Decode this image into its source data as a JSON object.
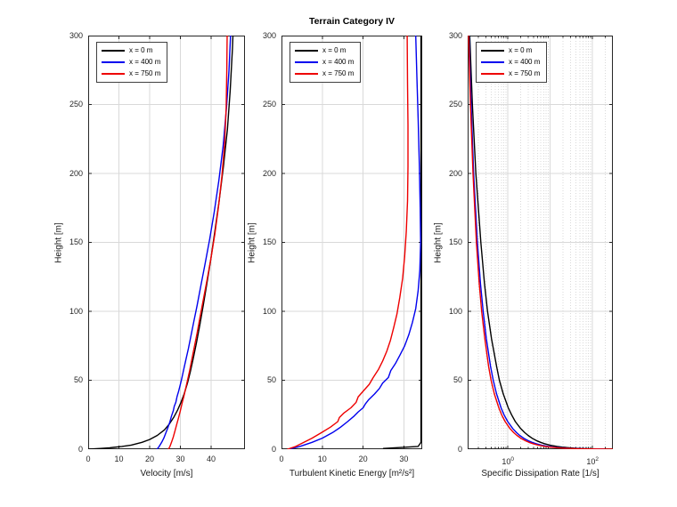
{
  "figure_title": "Terrain Category IV",
  "legend": {
    "entries": [
      {
        "label": "x = 0 m",
        "color": "#000000"
      },
      {
        "label": "x = 400 m",
        "color": "#0000ee"
      },
      {
        "label": "x = 750 m",
        "color": "#ee0000"
      }
    ]
  },
  "chart_data": [
    {
      "type": "line",
      "title": "",
      "xlabel": "Velocity [m/s]",
      "ylabel": "Height [m]",
      "xscale": "linear",
      "xlim": [
        0,
        51
      ],
      "ylim": [
        0,
        300
      ],
      "xticks": [
        0,
        10,
        20,
        30,
        40
      ],
      "xtick_labels": [
        "0",
        "10",
        "20",
        "30",
        "40"
      ],
      "yticks": [
        0,
        50,
        100,
        150,
        200,
        250,
        300
      ],
      "grid": true,
      "legend_position": "top-left",
      "series": [
        {
          "name": "x = 0 m",
          "color": "#000000",
          "x": [
            0,
            4,
            7,
            11,
            14,
            17.5,
            20,
            22.5,
            24.8,
            26.3,
            27.8,
            29,
            30.2,
            31.2,
            32.3,
            33.2,
            34.2,
            35.2,
            36.3,
            37.4,
            38.6,
            39.9,
            41.2,
            42.6,
            44,
            45.3,
            46.2,
            46.9,
            47.1
          ],
          "y": [
            0,
            0.5,
            1,
            2,
            3,
            5,
            7,
            10,
            14,
            18,
            23,
            28,
            34,
            40,
            48,
            56,
            66,
            77,
            90,
            104,
            120,
            138,
            158,
            180,
            205,
            232,
            260,
            290,
            300
          ]
        },
        {
          "name": "x = 400 m",
          "color": "#0000ee",
          "x": [
            22.4,
            23.1,
            23.9,
            24.6,
            25.3,
            26.0,
            26.6,
            27.1,
            27.7,
            28.0,
            28.5,
            28.9,
            29.4,
            30.0,
            30.5,
            31.1,
            31.8,
            32.6,
            33.4,
            34.3,
            35.4,
            36.6,
            38.0,
            39.5,
            41.0,
            42.5,
            43.9,
            45.0,
            45.8,
            46.3
          ],
          "y": [
            0,
            2,
            5,
            8,
            12,
            16,
            20,
            24,
            28,
            31,
            34,
            38,
            42,
            47,
            52,
            58,
            65,
            73,
            82,
            92,
            104,
            118,
            134,
            152,
            172,
            195,
            220,
            248,
            275,
            300
          ]
        },
        {
          "name": "x = 750 m",
          "color": "#ee0000",
          "x": [
            26.1,
            26.6,
            27.1,
            27.7,
            28.2,
            28.8,
            29.4,
            30.0,
            30.5,
            31.1,
            31.7,
            32.3,
            33.0,
            33.7,
            34.5,
            35.4,
            36.3,
            37.4,
            38.6,
            39.9,
            41.2,
            42.4,
            43.5,
            44.4,
            44.9,
            45.1,
            45.2
          ],
          "y": [
            0,
            2,
            5,
            9,
            13,
            18,
            23,
            28,
            33,
            38,
            44,
            50,
            57,
            65,
            74,
            84,
            95,
            108,
            122,
            138,
            156,
            176,
            198,
            222,
            248,
            275,
            300
          ]
        }
      ]
    },
    {
      "type": "line",
      "title": "Terrain Category IV",
      "xlabel": "Turbulent Kinetic Energy [m²/s²]",
      "ylabel": "Height [m]",
      "xscale": "linear",
      "xlim": [
        0,
        34.5
      ],
      "ylim": [
        0,
        300
      ],
      "xticks": [
        0,
        10,
        20,
        30
      ],
      "xtick_labels": [
        "0",
        "10",
        "20",
        "30"
      ],
      "yticks": [
        0,
        50,
        100,
        150,
        200,
        250,
        300
      ],
      "grid": true,
      "legend_position": "top-left",
      "series": [
        {
          "name": "x = 0 m",
          "color": "#000000",
          "x": [
            25,
            33.5,
            34.2,
            34.2
          ],
          "y": [
            0.5,
            2,
            5,
            300
          ]
        },
        {
          "name": "x = 400 m",
          "color": "#0000ee",
          "x": [
            1.8,
            4.5,
            7.5,
            10,
            12.5,
            14.5,
            16.2,
            17.8,
            18.8,
            20.0,
            20.6,
            21.4,
            22.8,
            24.0,
            24.8,
            26.2,
            26.8,
            27.9,
            29.0,
            30.2,
            31.2,
            32.1,
            32.9,
            33.5,
            33.9,
            34.1,
            34.0,
            33.8,
            33.5,
            33.2,
            32.9
          ],
          "y": [
            0,
            2,
            5,
            8,
            12,
            16,
            20,
            24,
            27,
            30,
            33,
            36,
            40,
            44,
            48,
            52,
            57,
            62,
            68,
            75,
            83,
            92,
            102,
            115,
            130,
            150,
            175,
            205,
            240,
            270,
            300
          ]
        },
        {
          "name": "x = 750 m",
          "color": "#ee0000",
          "x": [
            1.5,
            3.5,
            5.5,
            7.5,
            9.8,
            12.0,
            13.8,
            14.2,
            15.2,
            17.0,
            18.3,
            18.8,
            20.0,
            21.5,
            22.5,
            23.8,
            24.8,
            25.8,
            26.7,
            27.5,
            28.3,
            29.0,
            29.7,
            30.2,
            30.6,
            30.9,
            31.0,
            31.0,
            30.9,
            30.8
          ],
          "y": [
            0,
            2,
            5,
            8,
            12,
            16,
            20,
            23,
            26,
            30,
            34,
            38,
            42,
            47,
            52,
            58,
            64,
            71,
            79,
            88,
            98,
            110,
            124,
            140,
            158,
            180,
            205,
            235,
            265,
            300
          ]
        }
      ]
    },
    {
      "type": "line",
      "title": "",
      "xlabel": "Specific Dissipation Rate [1/s]",
      "ylabel": "Height [m]",
      "xscale": "log",
      "xlim": [
        0.112,
        302
      ],
      "ylim": [
        0,
        300
      ],
      "xticks": [
        1,
        100
      ],
      "xtick_labels": [
        {
          "base": "10",
          "exp": "0"
        },
        {
          "base": "10",
          "exp": "2"
        }
      ],
      "major_gridlines_x": [
        1,
        10,
        100
      ],
      "minor_grid": true,
      "yticks": [
        0,
        50,
        100,
        150,
        200,
        250,
        300
      ],
      "grid": true,
      "legend_position": "top-left",
      "series": [
        {
          "name": "x = 0 m",
          "color": "#000000",
          "x": [
            0.125,
            0.145,
            0.175,
            0.23,
            0.28,
            0.33,
            0.41,
            0.54,
            0.63,
            0.78,
            1.02,
            1.22,
            1.5,
            2.0,
            2.5,
            3.0,
            3.7,
            4.9,
            5.9,
            7.3,
            9.7,
            14.5,
            19.2,
            28.5,
            40,
            70,
            135,
            260
          ],
          "y": [
            300,
            250,
            200,
            150,
            120,
            100,
            80,
            60,
            50,
            40,
            30,
            25,
            20,
            15,
            12,
            10,
            8,
            6,
            5,
            4,
            3,
            2,
            1.5,
            1,
            0.7,
            0.4,
            0.2,
            0
          ]
        },
        {
          "name": "x = 400 m",
          "color": "#0000ee",
          "x": [
            0.12,
            0.135,
            0.155,
            0.19,
            0.225,
            0.26,
            0.31,
            0.39,
            0.45,
            0.54,
            0.69,
            0.81,
            0.99,
            1.3,
            1.6,
            1.9,
            2.35,
            3.1,
            3.7,
            4.6,
            6.1,
            9.1,
            12.0,
            18.0,
            25.5,
            45,
            88,
            190
          ],
          "y": [
            300,
            250,
            200,
            150,
            120,
            100,
            80,
            60,
            50,
            40,
            30,
            25,
            20,
            15,
            12,
            10,
            8,
            6,
            5,
            4,
            3,
            2,
            1.5,
            1,
            0.7,
            0.4,
            0.2,
            0
          ]
        },
        {
          "name": "x = 750 m",
          "color": "#ee0000",
          "x": [
            0.118,
            0.13,
            0.15,
            0.18,
            0.21,
            0.24,
            0.285,
            0.35,
            0.4,
            0.48,
            0.61,
            0.71,
            0.86,
            1.12,
            1.37,
            1.63,
            2.0,
            2.65,
            3.15,
            3.9,
            5.2,
            7.7,
            10.2,
            15.2,
            21.5,
            38,
            75,
            290
          ],
          "y": [
            300,
            250,
            200,
            150,
            120,
            100,
            80,
            60,
            50,
            40,
            30,
            25,
            20,
            15,
            12,
            10,
            8,
            6,
            5,
            4,
            3,
            2,
            1.5,
            1,
            0.7,
            0.4,
            0.2,
            0
          ]
        }
      ]
    }
  ]
}
